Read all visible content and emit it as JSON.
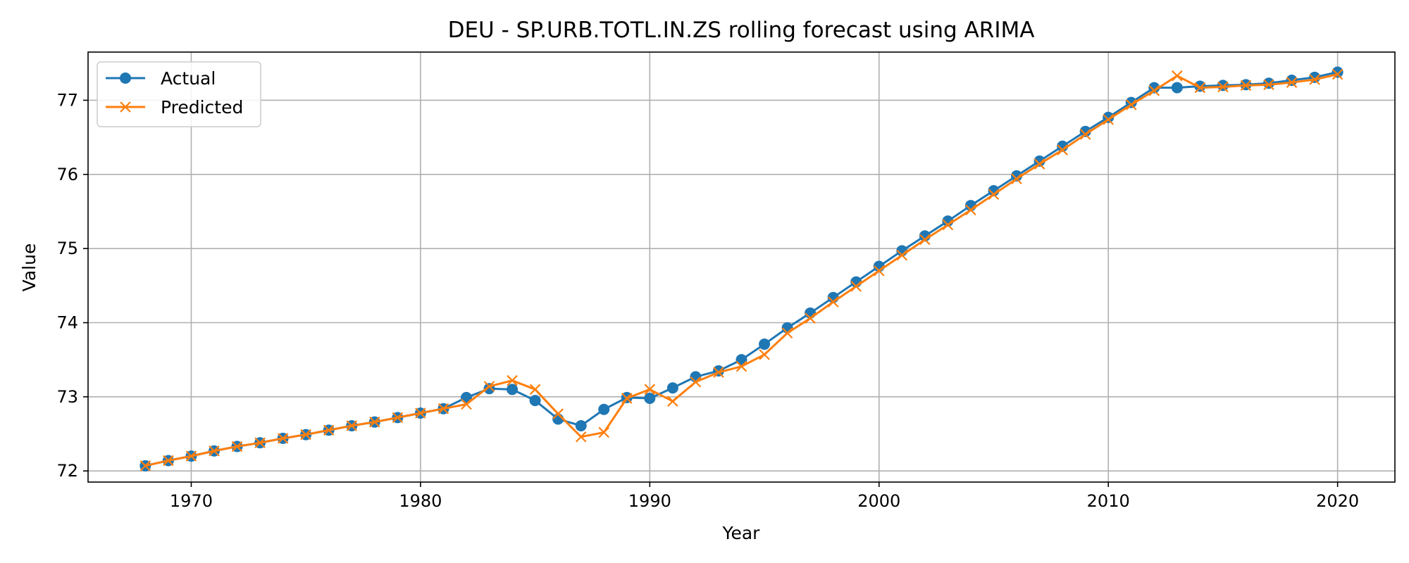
{
  "chart_data": {
    "type": "line",
    "title": "DEU - SP.URB.TOTL.IN.ZS rolling forecast using ARIMA",
    "xlabel": "Year",
    "ylabel": "Value",
    "xlim": [
      1965.5,
      2022.5
    ],
    "ylim": [
      71.85,
      77.65
    ],
    "xticks": [
      1970,
      1980,
      1990,
      2000,
      2010,
      2020
    ],
    "yticks": [
      72,
      73,
      74,
      75,
      76,
      77
    ],
    "grid": true,
    "legend": "upper-left",
    "x": [
      1968,
      1969,
      1970,
      1971,
      1972,
      1973,
      1974,
      1975,
      1976,
      1977,
      1978,
      1979,
      1980,
      1981,
      1982,
      1983,
      1984,
      1985,
      1986,
      1987,
      1988,
      1989,
      1990,
      1991,
      1992,
      1993,
      1994,
      1995,
      1996,
      1997,
      1998,
      1999,
      2000,
      2001,
      2002,
      2003,
      2004,
      2005,
      2006,
      2007,
      2008,
      2009,
      2010,
      2011,
      2012,
      2013,
      2014,
      2015,
      2016,
      2017,
      2018,
      2019,
      2020
    ],
    "series": [
      {
        "name": "Actual",
        "color": "#1f77b4",
        "marker": "circle",
        "values": [
          72.07,
          72.14,
          72.2,
          72.27,
          72.33,
          72.38,
          72.44,
          72.49,
          72.55,
          72.61,
          72.66,
          72.72,
          72.78,
          72.84,
          72.99,
          73.11,
          73.1,
          72.95,
          72.7,
          72.61,
          72.83,
          72.99,
          72.98,
          73.12,
          73.27,
          73.35,
          73.5,
          73.71,
          73.93,
          74.13,
          74.34,
          74.55,
          74.76,
          74.97,
          75.17,
          75.37,
          75.58,
          75.78,
          75.98,
          76.18,
          76.38,
          76.58,
          76.77,
          76.97,
          77.17,
          77.17,
          77.19,
          77.2,
          77.21,
          77.23,
          77.27,
          77.31,
          77.38
        ]
      },
      {
        "name": "Predicted",
        "color": "#ff7f0e",
        "marker": "x",
        "values": [
          72.07,
          72.14,
          72.2,
          72.27,
          72.33,
          72.38,
          72.44,
          72.49,
          72.55,
          72.61,
          72.66,
          72.72,
          72.78,
          72.84,
          72.9,
          73.14,
          73.22,
          73.1,
          72.77,
          72.46,
          72.52,
          72.98,
          73.1,
          72.94,
          73.2,
          73.33,
          73.41,
          73.57,
          73.86,
          74.06,
          74.28,
          74.49,
          74.7,
          74.91,
          75.12,
          75.32,
          75.52,
          75.73,
          75.94,
          76.14,
          76.33,
          76.54,
          76.74,
          76.94,
          77.13,
          77.33,
          77.17,
          77.18,
          77.2,
          77.21,
          77.24,
          77.28,
          77.35
        ]
      }
    ]
  }
}
